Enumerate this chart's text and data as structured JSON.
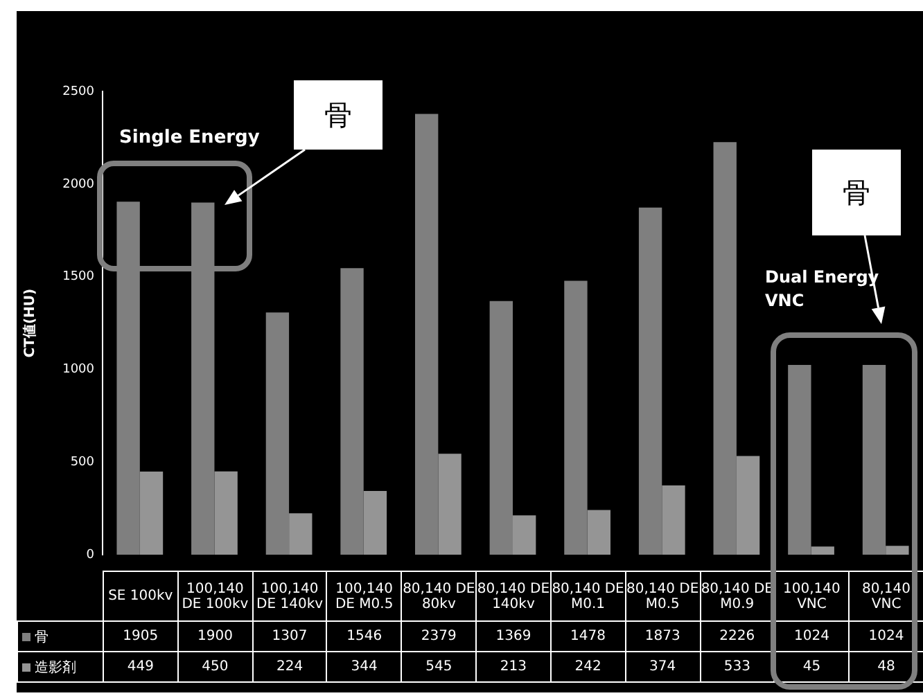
{
  "chart_data": {
    "type": "bar",
    "ylabel": "CT値(HU)",
    "categories": [
      "SE 100kv",
      "100,140 DE 100kv",
      "100,140 DE 140kv",
      "100,140 DE M0.5",
      "80,140 DE 80kv",
      "80,140 DE 140kv",
      "80,140 DE M0.1",
      "80,140 DE M0.5",
      "80,140 DE M0.9",
      "100,140 VNC",
      "80,140 VNC"
    ],
    "series": [
      {
        "name": "骨",
        "color": "#7f7f7f",
        "values": [
          1905,
          1900,
          1307,
          1546,
          2379,
          1369,
          1478,
          1873,
          2226,
          1024,
          1024
        ]
      },
      {
        "name": "造影剤",
        "color": "#959595",
        "values": [
          449,
          450,
          224,
          344,
          545,
          213,
          242,
          374,
          533,
          45,
          48
        ]
      }
    ],
    "ylim": [
      0,
      2500
    ],
    "yticks": [
      0,
      500,
      1000,
      1500,
      2000,
      2500
    ],
    "data_labels": true,
    "legend": "bottom",
    "annotations": [
      "Single Energy",
      "骨",
      "骨",
      "Dual Energy VNC"
    ]
  }
}
